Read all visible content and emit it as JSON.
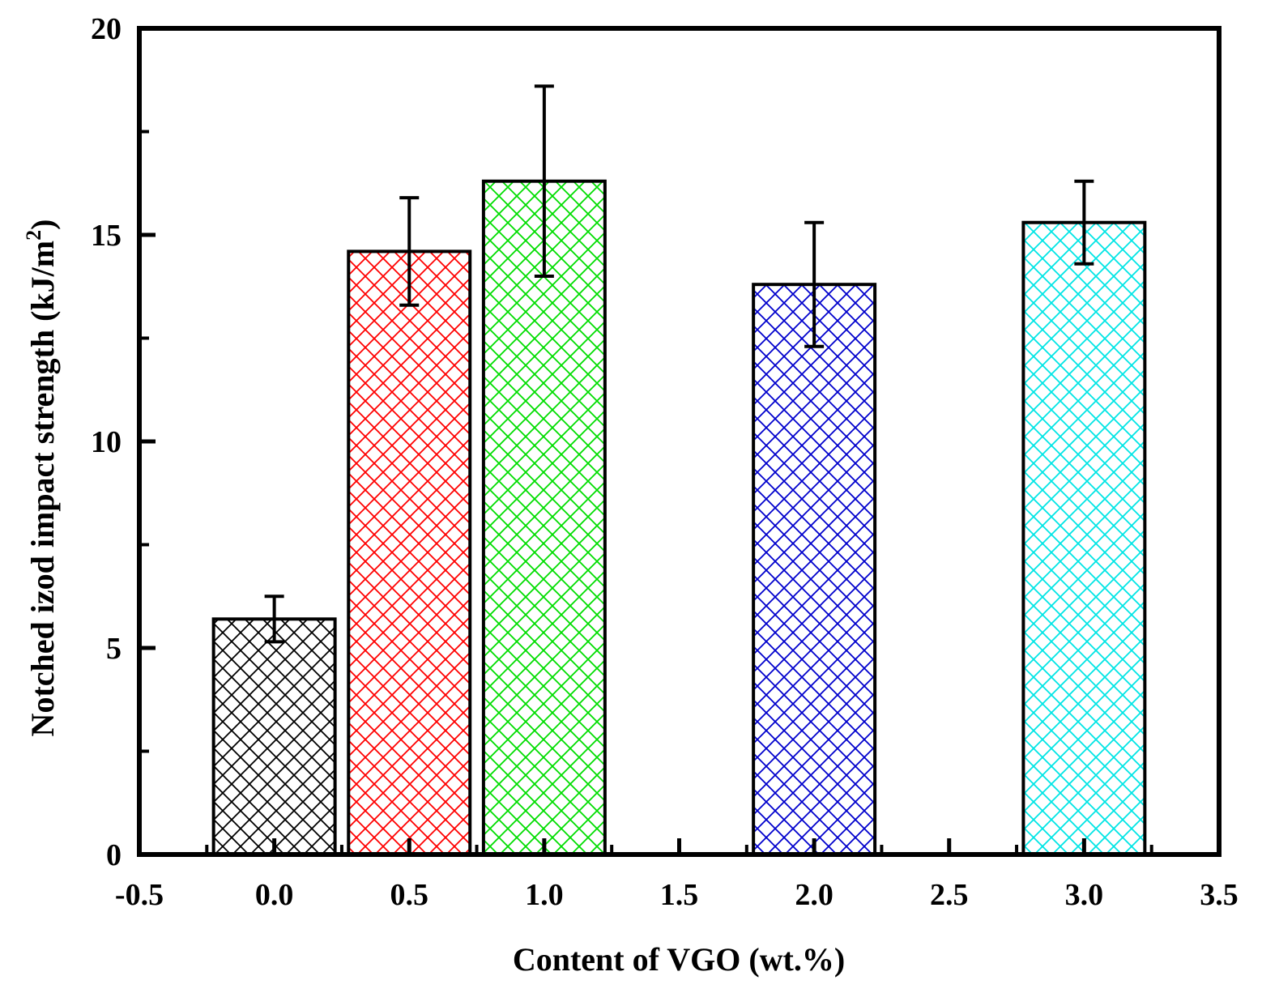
{
  "chart_data": {
    "type": "bar",
    "xlabel": "Content of VGO (wt.%)",
    "ylabel": "Notched izod impact strength (kJ/m",
    "ylabel_superscript": "2",
    "ylabel_suffix": ")",
    "xlim": [
      -0.5,
      3.5
    ],
    "ylim": [
      0,
      20
    ],
    "x_ticks": [
      "-0.5",
      "0.0",
      "0.5",
      "1.0",
      "1.5",
      "2.0",
      "2.5",
      "3.0",
      "3.5"
    ],
    "x_tick_values": [
      -0.5,
      0.0,
      0.5,
      1.0,
      1.5,
      2.0,
      2.5,
      3.0,
      3.5
    ],
    "y_ticks": [
      "0",
      "5",
      "10",
      "15",
      "20"
    ],
    "y_tick_values": [
      0,
      5,
      10,
      15,
      20
    ],
    "y_minor_tick_values": [
      2.5,
      7.5,
      12.5,
      17.5
    ],
    "bar_width": 0.45,
    "bars": [
      {
        "x": 0.0,
        "value": 5.7,
        "err_low": 5.15,
        "err_high": 6.25,
        "color": "#000000"
      },
      {
        "x": 0.5,
        "value": 14.6,
        "err_low": 13.3,
        "err_high": 15.9,
        "color": "#ff0000"
      },
      {
        "x": 1.0,
        "value": 16.3,
        "err_low": 14.0,
        "err_high": 18.6,
        "color": "#00dd00"
      },
      {
        "x": 2.0,
        "value": 13.8,
        "err_low": 12.3,
        "err_high": 15.3,
        "color": "#0000cc"
      },
      {
        "x": 3.0,
        "value": 15.3,
        "err_low": 14.3,
        "err_high": 16.3,
        "color": "#00e5e5"
      }
    ]
  }
}
